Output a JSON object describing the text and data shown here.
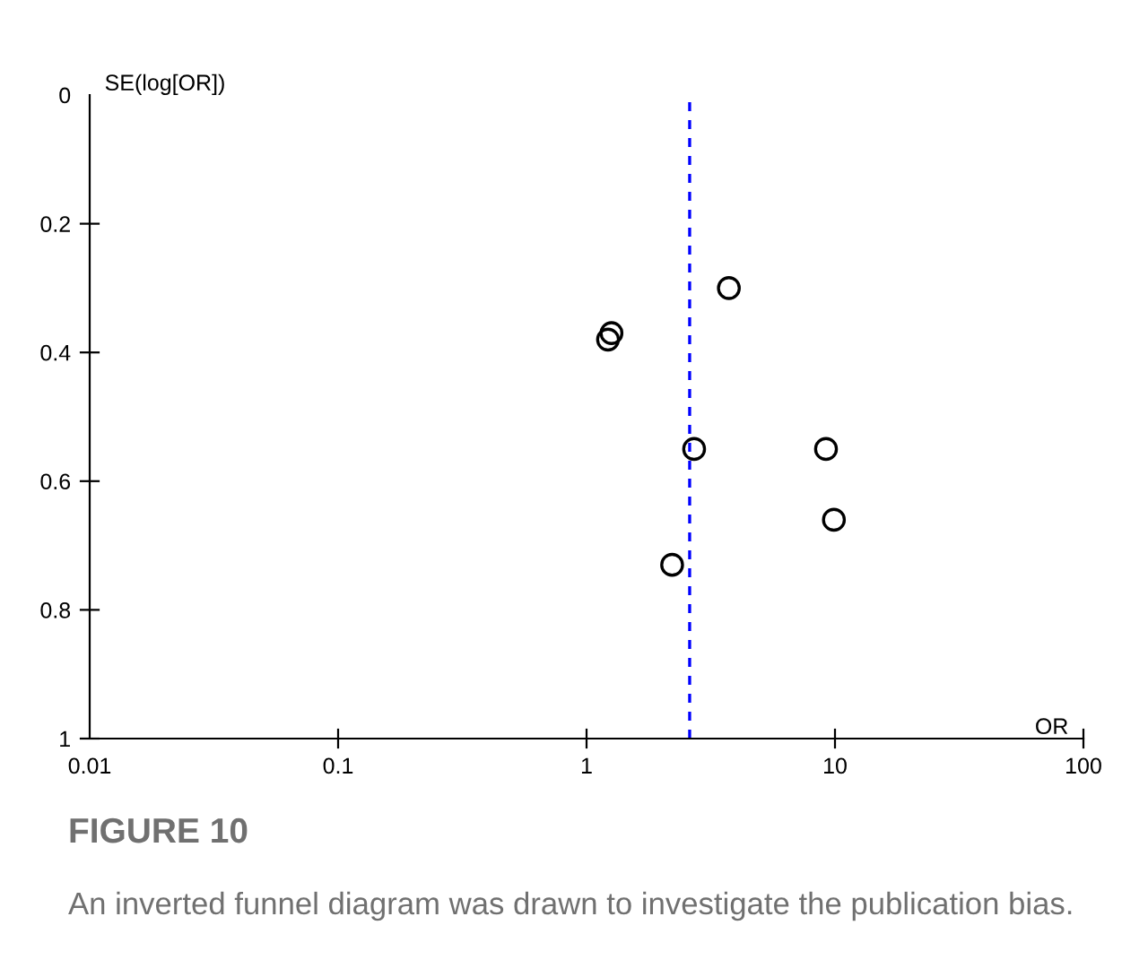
{
  "chart_data": {
    "type": "scatter",
    "title": "FIGURE 10",
    "subtitle": "An inverted funnel diagram was drawn to investigate the publication bias.",
    "xlabel": "OR",
    "ylabel": "SE(log[OR])",
    "x": [
      3.74,
      1.22,
      1.26,
      2.71,
      9.2,
      9.9,
      2.21
    ],
    "series": [
      {
        "color": "#000000",
        "values": [
          0.3,
          0.38,
          0.37,
          0.55,
          0.55,
          0.66,
          0.73
        ]
      }
    ],
    "marker": "circle",
    "log": "x",
    "grid": false,
    "legend": false,
    "xlim": [
      0.01,
      100
    ],
    "xticks": [
      0.01,
      0.1,
      1,
      10,
      100
    ],
    "ylim": [
      1,
      0
    ],
    "yticks": [
      0,
      0.2,
      0.4,
      0.6,
      0.8,
      1
    ],
    "ref_lines": [
      {
        "axis": "x",
        "value": 2.6,
        "color": "#0000ff",
        "line_style": "dashed"
      }
    ]
  }
}
